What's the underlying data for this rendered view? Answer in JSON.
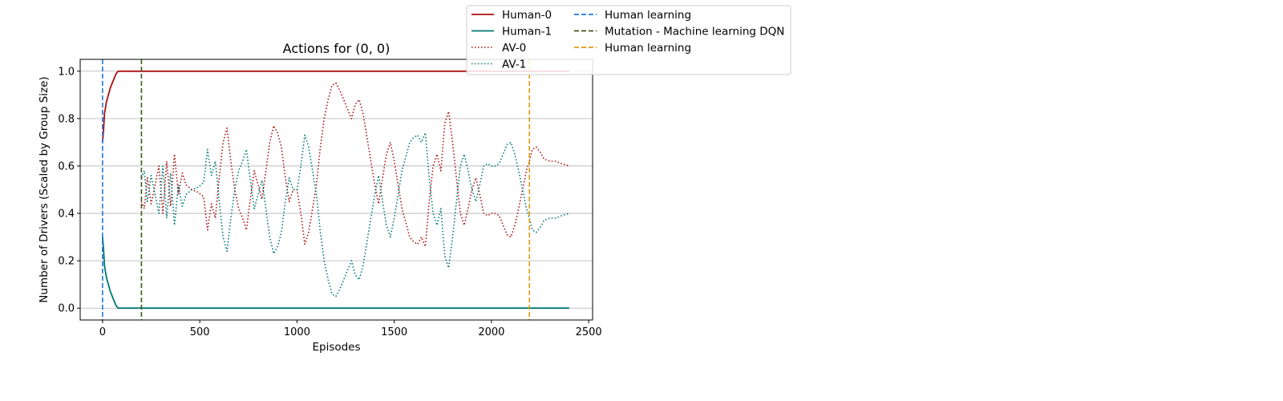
{
  "chart_data": {
    "type": "line",
    "title": "Actions for (0, 0)",
    "xlabel": "Episodes",
    "ylabel": "Number of Drivers (Scaled by Group Size)",
    "xlim": [
      -115,
      2520
    ],
    "ylim": [
      -0.05,
      1.05
    ],
    "xticks": [
      0,
      500,
      1000,
      1500,
      2000,
      2500
    ],
    "yticks": [
      0.0,
      0.2,
      0.4,
      0.6,
      0.8,
      1.0
    ],
    "xtick_labels": [
      "0",
      "500",
      "1000",
      "1500",
      "2000",
      "2500"
    ],
    "ytick_labels": [
      "0.0",
      "0.2",
      "0.4",
      "0.6",
      "0.8",
      "1.0"
    ],
    "grid": "horizontal",
    "legend_position": "top, outside right of title",
    "series": [
      {
        "name": "Human-0",
        "style": "solid",
        "color": "#aa1111",
        "x": [
          0,
          5,
          10,
          20,
          30,
          40,
          50,
          60,
          70,
          80,
          200,
          2400
        ],
        "y": [
          0.7,
          0.75,
          0.82,
          0.87,
          0.9,
          0.93,
          0.95,
          0.97,
          0.99,
          1.0,
          1.0,
          1.0
        ]
      },
      {
        "name": "Human-1",
        "style": "solid",
        "color": "#007777",
        "x": [
          0,
          5,
          10,
          20,
          30,
          40,
          50,
          60,
          70,
          80,
          200,
          2400
        ],
        "y": [
          0.3,
          0.25,
          0.18,
          0.13,
          0.1,
          0.07,
          0.05,
          0.03,
          0.01,
          0.0,
          0.0,
          0.0
        ]
      },
      {
        "name": "AV-0",
        "style": "dotted",
        "color": "#aa1111",
        "x": [
          200,
          215,
          230,
          250,
          270,
          290,
          310,
          330,
          350,
          370,
          390,
          410,
          430,
          460,
          490,
          520,
          540,
          560,
          580,
          600,
          620,
          640,
          660,
          680,
          700,
          720,
          740,
          760,
          780,
          800,
          820,
          840,
          860,
          880,
          900,
          920,
          940,
          960,
          980,
          1000,
          1020,
          1040,
          1060,
          1080,
          1100,
          1120,
          1140,
          1160,
          1180,
          1200,
          1220,
          1240,
          1260,
          1280,
          1300,
          1320,
          1340,
          1360,
          1380,
          1400,
          1420,
          1440,
          1460,
          1480,
          1500,
          1520,
          1540,
          1560,
          1580,
          1600,
          1620,
          1640,
          1660,
          1680,
          1700,
          1720,
          1740,
          1760,
          1780,
          1800,
          1820,
          1840,
          1860,
          1880,
          1900,
          1920,
          1940,
          1960,
          1980,
          2000,
          2020,
          2040,
          2060,
          2080,
          2100,
          2120,
          2140,
          2160,
          2180,
          2195,
          2210,
          2230,
          2250,
          2270,
          2300,
          2330,
          2360,
          2400
        ],
        "y": [
          0.45,
          0.42,
          0.55,
          0.44,
          0.52,
          0.6,
          0.4,
          0.62,
          0.43,
          0.65,
          0.48,
          0.57,
          0.52,
          0.5,
          0.49,
          0.47,
          0.33,
          0.44,
          0.38,
          0.55,
          0.7,
          0.76,
          0.62,
          0.5,
          0.42,
          0.38,
          0.33,
          0.46,
          0.58,
          0.52,
          0.46,
          0.58,
          0.7,
          0.77,
          0.74,
          0.68,
          0.55,
          0.45,
          0.5,
          0.5,
          0.4,
          0.27,
          0.32,
          0.42,
          0.52,
          0.68,
          0.8,
          0.88,
          0.94,
          0.95,
          0.92,
          0.88,
          0.84,
          0.8,
          0.86,
          0.88,
          0.82,
          0.72,
          0.62,
          0.52,
          0.44,
          0.55,
          0.65,
          0.7,
          0.62,
          0.52,
          0.42,
          0.36,
          0.3,
          0.28,
          0.27,
          0.3,
          0.26,
          0.45,
          0.6,
          0.65,
          0.58,
          0.78,
          0.83,
          0.7,
          0.55,
          0.4,
          0.35,
          0.42,
          0.5,
          0.55,
          0.48,
          0.4,
          0.39,
          0.4,
          0.4,
          0.39,
          0.35,
          0.31,
          0.3,
          0.35,
          0.42,
          0.5,
          0.58,
          0.62,
          0.67,
          0.68,
          0.66,
          0.63,
          0.62,
          0.62,
          0.61,
          0.6
        ]
      },
      {
        "name": "AV-1",
        "style": "dotted",
        "color": "#007777",
        "x": [
          200,
          215,
          230,
          250,
          270,
          290,
          310,
          330,
          350,
          370,
          390,
          410,
          430,
          460,
          490,
          520,
          540,
          560,
          580,
          600,
          620,
          640,
          660,
          680,
          700,
          720,
          740,
          760,
          780,
          800,
          820,
          840,
          860,
          880,
          900,
          920,
          940,
          960,
          980,
          1000,
          1020,
          1040,
          1060,
          1080,
          1100,
          1120,
          1140,
          1160,
          1180,
          1200,
          1220,
          1240,
          1260,
          1280,
          1300,
          1320,
          1340,
          1360,
          1380,
          1400,
          1420,
          1440,
          1460,
          1480,
          1500,
          1520,
          1540,
          1560,
          1580,
          1600,
          1620,
          1640,
          1660,
          1680,
          1700,
          1720,
          1740,
          1760,
          1780,
          1800,
          1820,
          1840,
          1860,
          1880,
          1900,
          1920,
          1940,
          1960,
          1980,
          2000,
          2020,
          2040,
          2060,
          2080,
          2100,
          2120,
          2140,
          2160,
          2180,
          2195,
          2210,
          2230,
          2250,
          2270,
          2300,
          2330,
          2360,
          2400
        ],
        "y": [
          0.55,
          0.58,
          0.45,
          0.56,
          0.48,
          0.4,
          0.6,
          0.38,
          0.57,
          0.35,
          0.52,
          0.43,
          0.48,
          0.5,
          0.51,
          0.53,
          0.67,
          0.56,
          0.62,
          0.45,
          0.3,
          0.24,
          0.38,
          0.5,
          0.58,
          0.62,
          0.67,
          0.54,
          0.42,
          0.48,
          0.54,
          0.42,
          0.3,
          0.23,
          0.26,
          0.32,
          0.45,
          0.55,
          0.5,
          0.5,
          0.6,
          0.73,
          0.68,
          0.58,
          0.48,
          0.32,
          0.2,
          0.12,
          0.06,
          0.05,
          0.08,
          0.12,
          0.16,
          0.2,
          0.14,
          0.12,
          0.18,
          0.28,
          0.38,
          0.48,
          0.56,
          0.45,
          0.35,
          0.3,
          0.38,
          0.48,
          0.58,
          0.64,
          0.7,
          0.72,
          0.73,
          0.7,
          0.74,
          0.55,
          0.4,
          0.35,
          0.42,
          0.22,
          0.17,
          0.3,
          0.45,
          0.6,
          0.65,
          0.58,
          0.5,
          0.45,
          0.52,
          0.6,
          0.61,
          0.6,
          0.6,
          0.61,
          0.65,
          0.69,
          0.7,
          0.65,
          0.58,
          0.5,
          0.42,
          0.38,
          0.33,
          0.32,
          0.34,
          0.37,
          0.38,
          0.38,
          0.39,
          0.4
        ]
      }
    ],
    "vlines": [
      {
        "name": "Human learning",
        "x": 0,
        "color": "#1f77e0",
        "style": "dashed"
      },
      {
        "name": "Mutation - Machine learning DQN",
        "x": 200,
        "color": "#3f5a1a",
        "style": "dashed"
      },
      {
        "name": "Human learning",
        "x": 2195,
        "color": "#e09b12",
        "style": "dashed"
      }
    ]
  }
}
